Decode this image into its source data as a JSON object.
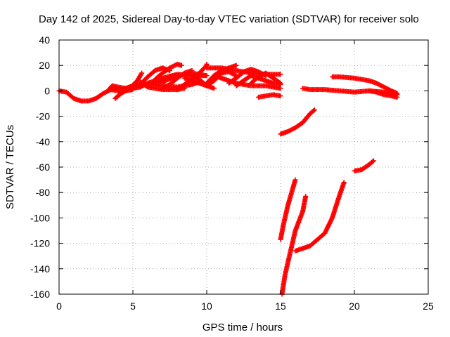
{
  "chart_data": {
    "type": "scatter",
    "title": "Day 142 of 2025, Sidereal Day-to-day VTEC variation (SDTVAR) for receiver solo",
    "xlabel": "GPS time / hours",
    "ylabel": "SDTVAR / TECUs",
    "xlim": [
      0,
      25
    ],
    "ylim": [
      -160,
      40
    ],
    "xticks": [
      0,
      5,
      10,
      15,
      20,
      25
    ],
    "yticks": [
      -160,
      -140,
      -120,
      -100,
      -80,
      -60,
      -40,
      -20,
      0,
      20,
      40
    ],
    "grid": true,
    "marker_color": "#ff0000",
    "series": [
      {
        "points": [
          [
            0,
            0
          ],
          [
            0.5,
            -1
          ],
          [
            1,
            -6
          ],
          [
            1.5,
            -8
          ],
          [
            2,
            -8
          ],
          [
            2.5,
            -6
          ],
          [
            3,
            -2
          ],
          [
            3.5,
            1
          ],
          [
            4,
            2
          ]
        ]
      },
      {
        "points": [
          [
            3.3,
            0
          ],
          [
            3.6,
            4
          ],
          [
            4,
            3
          ],
          [
            4.5,
            2
          ],
          [
            5,
            2
          ],
          [
            5.5,
            3
          ]
        ]
      },
      {
        "points": [
          [
            3.5,
            1
          ],
          [
            4,
            0
          ],
          [
            4.5,
            0
          ],
          [
            5,
            1
          ]
        ]
      },
      {
        "points": [
          [
            3.8,
            -6
          ],
          [
            4.2,
            -2
          ],
          [
            4.8,
            2
          ],
          [
            5.3,
            8
          ],
          [
            5.6,
            14
          ]
        ]
      },
      {
        "points": [
          [
            4,
            0
          ],
          [
            5,
            4
          ],
          [
            6,
            5
          ],
          [
            7,
            4
          ],
          [
            8,
            3
          ],
          [
            9,
            5
          ],
          [
            9.5,
            7
          ]
        ]
      },
      {
        "points": [
          [
            4.5,
            1
          ],
          [
            5.5,
            5
          ],
          [
            6,
            11
          ],
          [
            6.5,
            16
          ],
          [
            7,
            18
          ],
          [
            7.5,
            16
          ]
        ]
      },
      {
        "points": [
          [
            5.5,
            3
          ],
          [
            6,
            6
          ],
          [
            6.5,
            8
          ],
          [
            7,
            10
          ],
          [
            8,
            13
          ],
          [
            9,
            12
          ],
          [
            10,
            12
          ]
        ]
      },
      {
        "points": [
          [
            6,
            5
          ],
          [
            7,
            7
          ],
          [
            8,
            12
          ],
          [
            9,
            14
          ],
          [
            10,
            12
          ]
        ]
      },
      {
        "points": [
          [
            5.5,
            7
          ],
          [
            6,
            3
          ],
          [
            6.5,
            2
          ],
          [
            7,
            1
          ],
          [
            8,
            1
          ],
          [
            8.5,
            2
          ]
        ]
      },
      {
        "points": [
          [
            7,
            2
          ],
          [
            7.5,
            5
          ],
          [
            8,
            10
          ],
          [
            8.5,
            14
          ],
          [
            9,
            16
          ]
        ]
      },
      {
        "points": [
          [
            6.5,
            9
          ],
          [
            7,
            14
          ],
          [
            7.5,
            18
          ],
          [
            8,
            21
          ],
          [
            8.3,
            20
          ]
        ]
      },
      {
        "points": [
          [
            8,
            1
          ],
          [
            8.5,
            5
          ],
          [
            9,
            9
          ],
          [
            9.5,
            14
          ],
          [
            10,
            20
          ],
          [
            10,
            21
          ]
        ]
      },
      {
        "points": [
          [
            9,
            12
          ],
          [
            9.5,
            9
          ],
          [
            10,
            4
          ],
          [
            10.5,
            2
          ]
        ]
      },
      {
        "points": [
          [
            8.5,
            10
          ],
          [
            9,
            8
          ],
          [
            9.5,
            6
          ],
          [
            10,
            4
          ]
        ]
      },
      {
        "points": [
          [
            10,
            6
          ],
          [
            10.5,
            12
          ],
          [
            11,
            16
          ],
          [
            11.5,
            18
          ],
          [
            12,
            20
          ]
        ]
      },
      {
        "points": [
          [
            10,
            4
          ],
          [
            10.5,
            8
          ],
          [
            11,
            14
          ],
          [
            11.5,
            15
          ],
          [
            12,
            12
          ]
        ]
      },
      {
        "points": [
          [
            10.5,
            12
          ],
          [
            11,
            10
          ],
          [
            11.5,
            8
          ],
          [
            12,
            6
          ],
          [
            12.5,
            5
          ],
          [
            13,
            4
          ],
          [
            14,
            4
          ],
          [
            15,
            2
          ]
        ]
      },
      {
        "points": [
          [
            10,
            18
          ],
          [
            11,
            18
          ],
          [
            12,
            16
          ],
          [
            13,
            14
          ],
          [
            14,
            13
          ],
          [
            15,
            13
          ]
        ]
      },
      {
        "points": [
          [
            11.5,
            6
          ],
          [
            12,
            10
          ],
          [
            12.5,
            15
          ],
          [
            13,
            17
          ],
          [
            13.5,
            15
          ],
          [
            14,
            12
          ]
        ]
      },
      {
        "points": [
          [
            12,
            4
          ],
          [
            12.5,
            8
          ],
          [
            13,
            12
          ],
          [
            13.5,
            10
          ],
          [
            14,
            8
          ],
          [
            14.5,
            6
          ],
          [
            15,
            5
          ]
        ]
      },
      {
        "points": [
          [
            13,
            6
          ],
          [
            13.5,
            11
          ],
          [
            14,
            14
          ],
          [
            14.5,
            10
          ],
          [
            15,
            6
          ]
        ]
      },
      {
        "points": [
          [
            13.5,
            -5
          ],
          [
            14,
            -4
          ],
          [
            14.5,
            -3
          ],
          [
            15,
            -4
          ]
        ]
      },
      {
        "points": [
          [
            15,
            -34
          ],
          [
            15.5,
            -32
          ],
          [
            16,
            -29
          ],
          [
            16.5,
            -25
          ],
          [
            17,
            -18
          ],
          [
            17.3,
            -15
          ]
        ]
      },
      {
        "points": [
          [
            15,
            -117
          ],
          [
            15.2,
            -105
          ],
          [
            15.5,
            -90
          ],
          [
            15.8,
            -78
          ],
          [
            16,
            -70
          ]
        ]
      },
      {
        "points": [
          [
            15.1,
            -160
          ],
          [
            15.3,
            -145
          ],
          [
            15.7,
            -125
          ],
          [
            16,
            -110
          ],
          [
            16.5,
            -95
          ],
          [
            16.7,
            -83
          ]
        ]
      },
      {
        "points": [
          [
            16,
            -126
          ],
          [
            17,
            -122
          ],
          [
            18,
            -112
          ],
          [
            18.5,
            -100
          ],
          [
            19,
            -82
          ],
          [
            19.3,
            -72
          ]
        ]
      },
      {
        "points": [
          [
            16.5,
            2
          ],
          [
            17,
            1
          ],
          [
            18,
            1
          ],
          [
            19,
            0
          ],
          [
            20,
            -1
          ],
          [
            21,
            0
          ],
          [
            22,
            -1
          ],
          [
            22.9,
            -3
          ]
        ]
      },
      {
        "points": [
          [
            18.5,
            11
          ],
          [
            19,
            11
          ],
          [
            20,
            10
          ],
          [
            21,
            8
          ],
          [
            21.5,
            6
          ],
          [
            22,
            3
          ],
          [
            22.5,
            0
          ],
          [
            22.9,
            -2
          ]
        ]
      },
      {
        "points": [
          [
            21,
            0
          ],
          [
            21.5,
            -1
          ],
          [
            22,
            -3
          ],
          [
            22.5,
            -4
          ],
          [
            22.9,
            -5
          ]
        ]
      },
      {
        "points": [
          [
            20,
            -63
          ],
          [
            20.5,
            -62
          ],
          [
            21,
            -58
          ],
          [
            21.3,
            -55
          ]
        ]
      }
    ]
  }
}
